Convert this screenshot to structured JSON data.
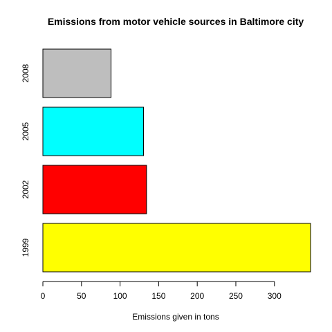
{
  "chart_data": {
    "type": "bar",
    "orientation": "horizontal",
    "title": "Emissions from motor vehicle sources in Baltimore city",
    "xlabel": "Emissions given in tons",
    "ylabel": "",
    "categories": [
      "1999",
      "2002",
      "2005",
      "2008"
    ],
    "values": [
      346.8,
      134.3,
      130.4,
      88.3
    ],
    "bar_colors": [
      "#ffff00",
      "#ff0000",
      "#00ffff",
      "#bebebe"
    ],
    "xticks": [
      "0",
      "50",
      "100",
      "150",
      "200",
      "250",
      "300"
    ],
    "xlim": [
      0,
      346.8
    ],
    "grid": false,
    "legend": "none"
  }
}
